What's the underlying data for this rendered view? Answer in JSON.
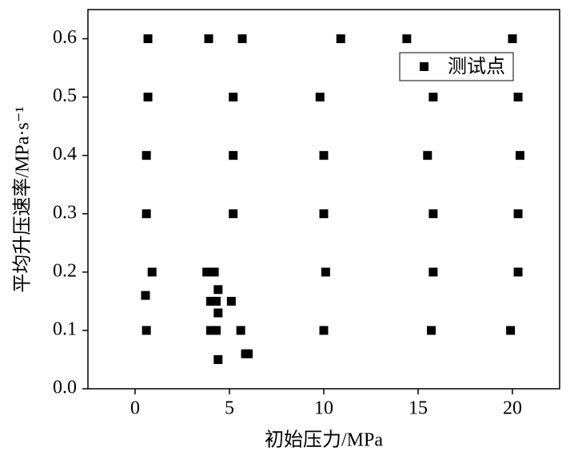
{
  "chart_data": {
    "type": "scatter",
    "x_label": "初始压力/MPa",
    "y_label": "平均升压速率/MPa·s⁻¹",
    "xlim": [
      -2.5,
      22.5
    ],
    "xticks": [
      0,
      5,
      10,
      15,
      20
    ],
    "ylim": [
      0,
      0.65
    ],
    "yticks": [
      {
        "value": 0,
        "label": "0.0"
      },
      0.1,
      0.2,
      0.3,
      0.4,
      0.5,
      0.6
    ],
    "legend": "upper right",
    "series": [
      {
        "name": "测试点",
        "color": "#000000",
        "x": [
          0.68,
          3.9,
          5.68,
          10.9,
          14.4,
          20.0,
          0.68,
          5.2,
          9.8,
          15.8,
          20.3,
          0.6,
          5.2,
          10.0,
          15.5,
          20.4,
          0.6,
          5.2,
          10.0,
          15.8,
          20.3,
          0.9,
          3.8,
          4.2,
          10.1,
          15.8,
          20.3,
          4.4,
          0.55,
          4.0,
          4.3,
          5.1,
          4.4,
          0.6,
          4.0,
          4.3,
          5.6,
          10.0,
          15.7,
          19.9,
          5.85,
          6.0,
          4.4
        ],
        "values": [
          0.6,
          0.6,
          0.6,
          0.6,
          0.6,
          0.6,
          0.5,
          0.5,
          0.5,
          0.5,
          0.5,
          0.4,
          0.4,
          0.4,
          0.4,
          0.4,
          0.3,
          0.3,
          0.3,
          0.3,
          0.3,
          0.2,
          0.2,
          0.2,
          0.2,
          0.2,
          0.2,
          0.17,
          0.16,
          0.15,
          0.15,
          0.15,
          0.13,
          0.1,
          0.1,
          0.1,
          0.1,
          0.1,
          0.1,
          0.1,
          0.06,
          0.06,
          0.05
        ]
      }
    ]
  }
}
